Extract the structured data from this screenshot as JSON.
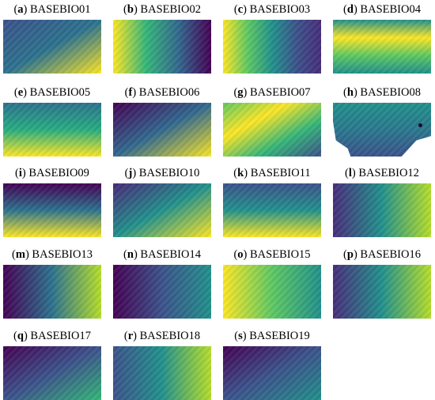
{
  "panels": [
    {
      "letter": "a",
      "name": "BASEBIO01",
      "grad": [
        "#3b528b",
        "#2c728e",
        "#fde725"
      ],
      "dir": "to bottom right"
    },
    {
      "letter": "b",
      "name": "BASEBIO02",
      "grad": [
        "#fde725",
        "#35b779",
        "#31688e",
        "#440154"
      ],
      "dir": "to right"
    },
    {
      "letter": "c",
      "name": "BASEBIO03",
      "grad": [
        "#fde725",
        "#5ec962",
        "#21918c",
        "#3b528b",
        "#472d7b"
      ],
      "dir": "to right"
    },
    {
      "letter": "d",
      "name": "BASEBIO04",
      "grad": [
        "#21918c",
        "#fde725",
        "#5ec962",
        "#21918c"
      ],
      "dir": "to bottom"
    },
    {
      "letter": "e",
      "name": "BASEBIO05",
      "grad": [
        "#2c728e",
        "#27ad81",
        "#fde725"
      ],
      "dir": "to bottom"
    },
    {
      "letter": "f",
      "name": "BASEBIO06",
      "grad": [
        "#440154",
        "#31688e",
        "#fde725"
      ],
      "dir": "to bottom right"
    },
    {
      "letter": "g",
      "name": "BASEBIO07",
      "grad": [
        "#5ec962",
        "#fde725",
        "#35b779",
        "#3b528b"
      ],
      "dir": "to bottom right"
    },
    {
      "letter": "h",
      "name": "BASEBIO08",
      "grad": [
        "#21918c",
        "#2a788e",
        "#3b528b"
      ],
      "dir": "to bottom"
    },
    {
      "letter": "i",
      "name": "BASEBIO09",
      "grad": [
        "#440154",
        "#2c728e",
        "#fde725"
      ],
      "dir": "to bottom"
    },
    {
      "letter": "j",
      "name": "BASEBIO10",
      "grad": [
        "#482878",
        "#21918c",
        "#fde725"
      ],
      "dir": "to bottom right"
    },
    {
      "letter": "k",
      "name": "BASEBIO11",
      "grad": [
        "#3b528b",
        "#21918c",
        "#fde725"
      ],
      "dir": "to bottom"
    },
    {
      "letter": "l",
      "name": "BASEBIO12",
      "grad": [
        "#472d7b",
        "#21918c",
        "#b5de2b"
      ],
      "dir": "to right"
    },
    {
      "letter": "m",
      "name": "BASEBIO13",
      "grad": [
        "#440154",
        "#2c728e",
        "#b5de2b"
      ],
      "dir": "to right"
    },
    {
      "letter": "n",
      "name": "BASEBIO14",
      "grad": [
        "#440154",
        "#3b528b",
        "#21918c"
      ],
      "dir": "to right"
    },
    {
      "letter": "o",
      "name": "BASEBIO15",
      "grad": [
        "#fde725",
        "#5ec962",
        "#21918c"
      ],
      "dir": "to right"
    },
    {
      "letter": "p",
      "name": "BASEBIO16",
      "grad": [
        "#472d7b",
        "#21918c",
        "#b5de2b"
      ],
      "dir": "to right"
    },
    {
      "letter": "q",
      "name": "BASEBIO17",
      "grad": [
        "#440154",
        "#3b528b",
        "#35b779"
      ],
      "dir": "to bottom right"
    },
    {
      "letter": "r",
      "name": "BASEBIO18",
      "grad": [
        "#3b528b",
        "#21918c",
        "#b5de2b"
      ],
      "dir": "to right"
    },
    {
      "letter": "s",
      "name": "BASEBIO19",
      "grad": [
        "#440154",
        "#3b528b",
        "#21918c"
      ],
      "dir": "to bottom right"
    }
  ]
}
